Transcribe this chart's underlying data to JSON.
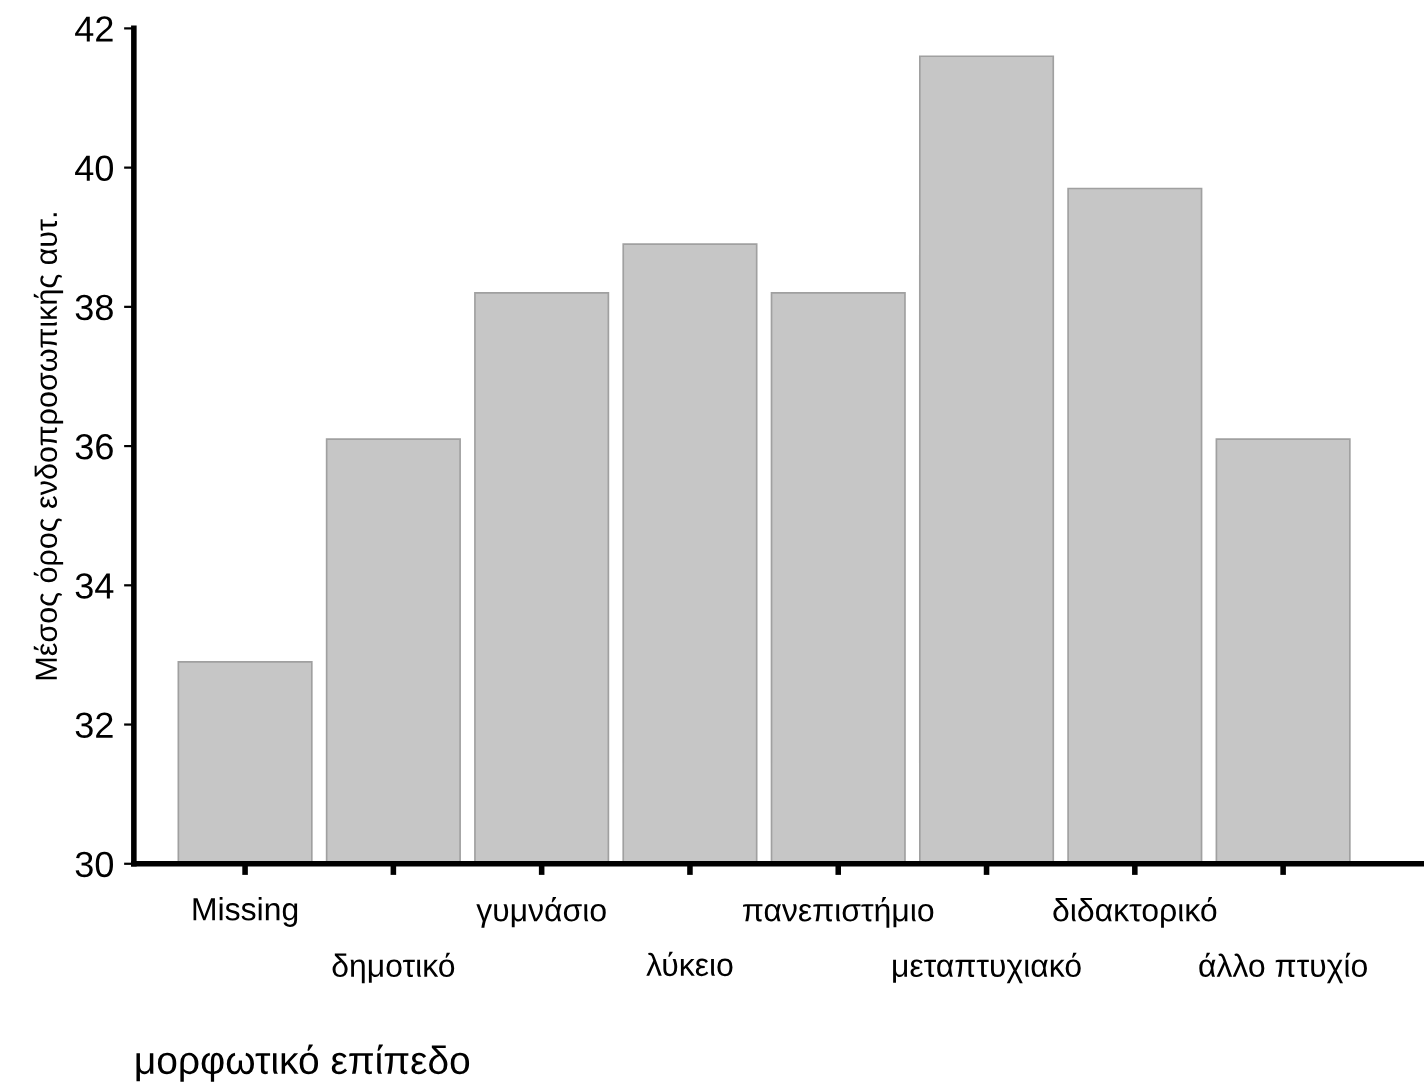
{
  "chart_data": {
    "type": "bar",
    "xlabel": "μορφωτικό επίπεδο",
    "ylabel": "Μέσος όρος ενδοπροσωπικής αυτ.",
    "categories": [
      "Missing",
      "δημοτικό",
      "γυμνάσιο",
      "λύκειο",
      "πανεπιστήμιο",
      "μεταπτυχιακό",
      "διδακτορικό",
      "άλλο πτυχίο"
    ],
    "values": [
      32.9,
      36.1,
      38.2,
      38.9,
      38.2,
      41.6,
      39.7,
      36.1
    ],
    "color": "#c6c6c6",
    "ylim": [
      30,
      42
    ],
    "yticks": [
      30,
      32,
      34,
      36,
      38,
      40,
      42
    ],
    "grid": false,
    "legend": false
  }
}
